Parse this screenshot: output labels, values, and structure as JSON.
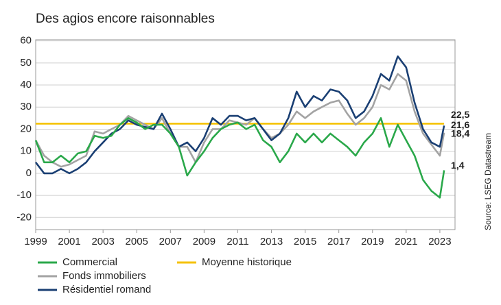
{
  "chart_data": {
    "type": "line",
    "title": "Des agios encore raisonnables",
    "source": "Source: LSEG Datastream",
    "x": [
      1999,
      1999.5,
      2000,
      2000.5,
      2001,
      2001.5,
      2002,
      2002.5,
      2003,
      2003.5,
      2004,
      2004.5,
      2005,
      2005.5,
      2006,
      2006.5,
      2007,
      2007.5,
      2008,
      2008.5,
      2009,
      2009.5,
      2010,
      2010.5,
      2011,
      2011.5,
      2012,
      2012.5,
      2013,
      2013.5,
      2014,
      2014.5,
      2015,
      2015.5,
      2016,
      2016.5,
      2017,
      2017.5,
      2018,
      2018.5,
      2019,
      2019.5,
      2020,
      2020.5,
      2021,
      2021.5,
      2022,
      2022.5,
      2023,
      2023.25
    ],
    "series": [
      {
        "name": "Commercial",
        "color": "#2aa84a",
        "values": [
          15,
          5,
          5,
          8,
          5,
          9,
          10,
          17,
          16,
          17,
          22,
          25,
          23,
          20,
          22,
          22,
          18,
          12,
          -1,
          5,
          10,
          16,
          20,
          22,
          23,
          20,
          22,
          15,
          12,
          5,
          10,
          18,
          14,
          18,
          14,
          18,
          15,
          12,
          8,
          14,
          18,
          25,
          12,
          22,
          15,
          8,
          -3,
          -8,
          -11,
          1.4
        ],
        "value_labels": [
          null,
          null,
          null,
          null,
          null,
          null,
          null,
          null,
          null,
          null,
          null,
          null,
          null,
          null,
          null,
          null,
          null,
          null,
          null,
          null,
          null,
          null,
          null,
          null,
          null,
          null,
          null,
          null,
          null,
          null,
          null,
          null,
          null,
          null,
          null,
          null,
          null,
          null,
          null,
          null,
          null,
          null,
          null,
          null,
          null,
          null,
          null,
          null,
          null,
          "1,4"
        ]
      },
      {
        "name": "Fonds immobiliers",
        "color": "#a3a3a3",
        "values": [
          15,
          8,
          5,
          3,
          4,
          6,
          8,
          19,
          18,
          20,
          22,
          26,
          24,
          22,
          20,
          25,
          18,
          12,
          12,
          5,
          14,
          20,
          20,
          24,
          23,
          22,
          25,
          20,
          16,
          18,
          22,
          28,
          25,
          28,
          30,
          32,
          33,
          27,
          22,
          25,
          30,
          40,
          38,
          45,
          42,
          28,
          18,
          13,
          8,
          18.4
        ],
        "value_labels": [
          null,
          null,
          null,
          null,
          null,
          null,
          null,
          null,
          null,
          null,
          null,
          null,
          null,
          null,
          null,
          null,
          null,
          null,
          null,
          null,
          null,
          null,
          null,
          null,
          null,
          null,
          null,
          null,
          null,
          null,
          null,
          null,
          null,
          null,
          null,
          null,
          null,
          null,
          null,
          null,
          null,
          null,
          null,
          null,
          null,
          null,
          null,
          null,
          null,
          "18,4"
        ]
      },
      {
        "name": "Résidentiel romand",
        "color": "#1a3f73",
        "values": [
          5,
          0,
          0,
          2,
          0,
          2,
          5,
          10,
          14,
          18,
          20,
          24,
          22,
          21,
          20,
          27,
          20,
          12,
          14,
          10,
          16,
          25,
          22,
          26,
          26,
          24,
          25,
          20,
          15,
          18,
          25,
          37,
          30,
          35,
          33,
          38,
          37,
          33,
          25,
          28,
          35,
          45,
          42,
          53,
          48,
          32,
          20,
          14,
          12,
          21.6
        ],
        "value_labels": [
          null,
          null,
          null,
          null,
          null,
          null,
          null,
          null,
          null,
          null,
          null,
          null,
          null,
          null,
          null,
          null,
          null,
          null,
          null,
          null,
          null,
          null,
          null,
          null,
          null,
          null,
          null,
          null,
          null,
          null,
          null,
          null,
          null,
          null,
          null,
          null,
          null,
          null,
          null,
          null,
          null,
          null,
          null,
          null,
          null,
          null,
          null,
          null,
          null,
          "21,6"
        ]
      },
      {
        "name": "Moyenne historique",
        "color": "#f5c200",
        "values": [
          22.5,
          22.5,
          22.5,
          22.5,
          22.5,
          22.5,
          22.5,
          22.5,
          22.5,
          22.5,
          22.5,
          22.5,
          22.5,
          22.5,
          22.5,
          22.5,
          22.5,
          22.5,
          22.5,
          22.5,
          22.5,
          22.5,
          22.5,
          22.5,
          22.5,
          22.5,
          22.5,
          22.5,
          22.5,
          22.5,
          22.5,
          22.5,
          22.5,
          22.5,
          22.5,
          22.5,
          22.5,
          22.5,
          22.5,
          22.5,
          22.5,
          22.5,
          22.5,
          22.5,
          22.5,
          22.5,
          22.5,
          22.5,
          22.5,
          22.5
        ],
        "value_labels": [
          null,
          null,
          null,
          null,
          null,
          null,
          null,
          null,
          null,
          null,
          null,
          null,
          null,
          null,
          null,
          null,
          null,
          null,
          null,
          null,
          null,
          null,
          null,
          null,
          null,
          null,
          null,
          null,
          null,
          null,
          null,
          null,
          null,
          null,
          null,
          null,
          null,
          null,
          null,
          null,
          null,
          null,
          null,
          null,
          null,
          null,
          null,
          null,
          null,
          "22,5"
        ]
      }
    ],
    "xlim": [
      1999,
      2023.9
    ],
    "xticks": [
      1999,
      2001,
      2003,
      2005,
      2007,
      2009,
      2011,
      2013,
      2015,
      2017,
      2019,
      2021,
      2023
    ],
    "ylim": [
      -25.5,
      60.5
    ],
    "yticks": [
      -20,
      -10,
      0,
      10,
      20,
      30,
      40,
      50,
      60
    ],
    "grid": true
  }
}
